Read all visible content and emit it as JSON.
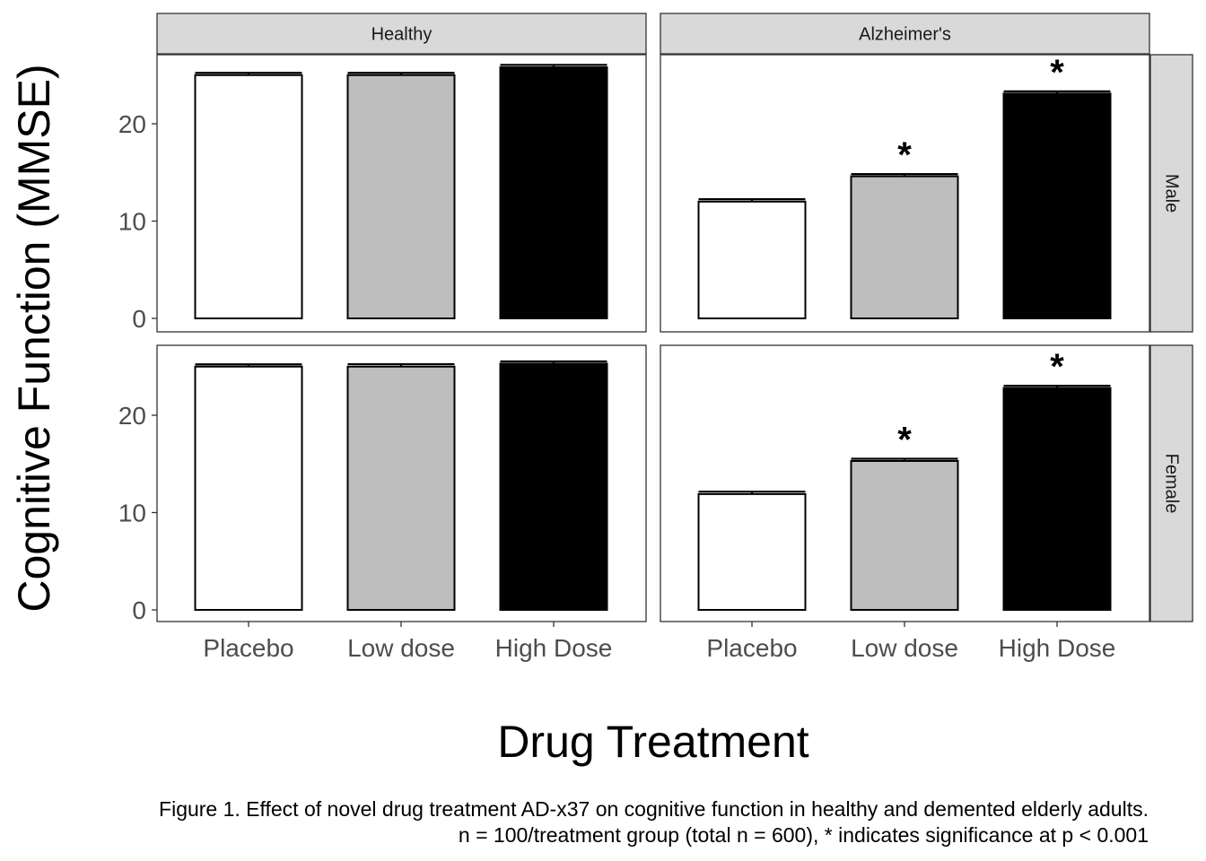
{
  "chart_data": {
    "type": "bar",
    "ylabel": "Cognitive Function (MMSE)",
    "xlabel": "Drug Treatment",
    "categories": [
      "Placebo",
      "Low dose",
      "High Dose"
    ],
    "y_ticks": [
      "0",
      "10",
      "20"
    ],
    "ylim": [
      0,
      27
    ],
    "column_facets": [
      "Healthy",
      "Alzheimer's"
    ],
    "row_facets": [
      "Male",
      "Female"
    ],
    "bar_colors": [
      "#ffffff",
      "#bebebe",
      "#000000"
    ],
    "significance_marker": "*",
    "panels": [
      {
        "column": "Healthy",
        "row": "Male",
        "values": [
          25.0,
          25.0,
          25.8
        ],
        "errors": [
          0.15,
          0.15,
          0.25
        ],
        "significant": [
          false,
          false,
          false
        ]
      },
      {
        "column": "Alzheimer's",
        "row": "Male",
        "values": [
          12.0,
          14.6,
          23.1
        ],
        "errors": [
          0.25,
          0.2,
          0.2
        ],
        "significant": [
          false,
          true,
          true
        ]
      },
      {
        "column": "Healthy",
        "row": "Female",
        "values": [
          25.0,
          25.0,
          25.3
        ],
        "errors": [
          0.15,
          0.25,
          0.2
        ],
        "significant": [
          false,
          false,
          false
        ]
      },
      {
        "column": "Alzheimer's",
        "row": "Female",
        "values": [
          11.9,
          15.3,
          22.8
        ],
        "errors": [
          0.25,
          0.15,
          0.2
        ],
        "significant": [
          false,
          true,
          true
        ]
      }
    ]
  },
  "caption": {
    "line1": "Figure 1. Effect of novel drug treatment AD-x37 on cognitive function in healthy and demented elderly adults.",
    "line2": "n = 100/treatment group (total n = 600), * indicates significance at p < 0.001"
  }
}
